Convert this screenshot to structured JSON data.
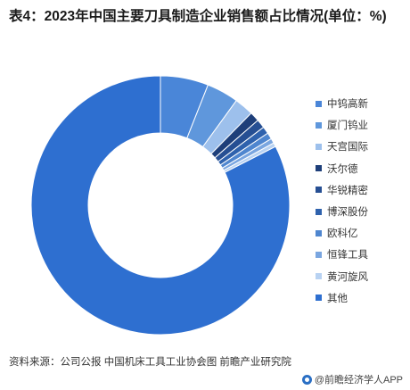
{
  "title": "表4：2023年中国主要刀具制造企业销售额占比情况(单位：%)",
  "chart_data": {
    "type": "pie",
    "variant": "donut",
    "categories": [
      "中钨高新",
      "厦门钨业",
      "天宫国际",
      "沃尔德",
      "华锐精密",
      "博深股份",
      "欧科亿",
      "恒锋工具",
      "黄河旋风",
      "其他"
    ],
    "values": [
      6.0,
      4.0,
      2.4,
      1.2,
      1.1,
      0.9,
      0.8,
      0.6,
      0.5,
      82.5
    ],
    "colors": [
      "#4a86d8",
      "#5f97dc",
      "#9dc0ec",
      "#1e3f7a",
      "#264f93",
      "#2f62ad",
      "#4f86cf",
      "#7aa6e0",
      "#b8d2f2",
      "#2e6fd0"
    ],
    "legend_position": "right"
  },
  "source": "资料来源：公司公报 中国机床工具工业协会图 前瞻产业研究院",
  "brand": "@前瞻经济学人APP"
}
